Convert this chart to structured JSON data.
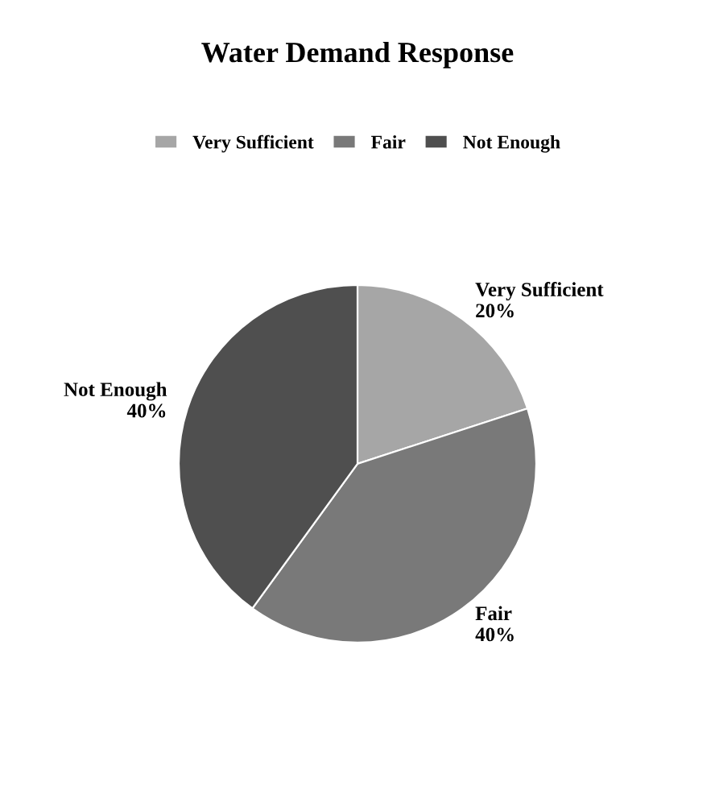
{
  "chart_data": {
    "type": "pie",
    "title": "Water Demand Response",
    "categories": [
      "Very Sufficient",
      "Fair",
      "Not Enough"
    ],
    "values": [
      20,
      40,
      40
    ],
    "colors": [
      "#a6a6a6",
      "#797979",
      "#4f4f4f"
    ],
    "value_labels": [
      "20%",
      "40%",
      "40%"
    ],
    "legend": "top"
  }
}
